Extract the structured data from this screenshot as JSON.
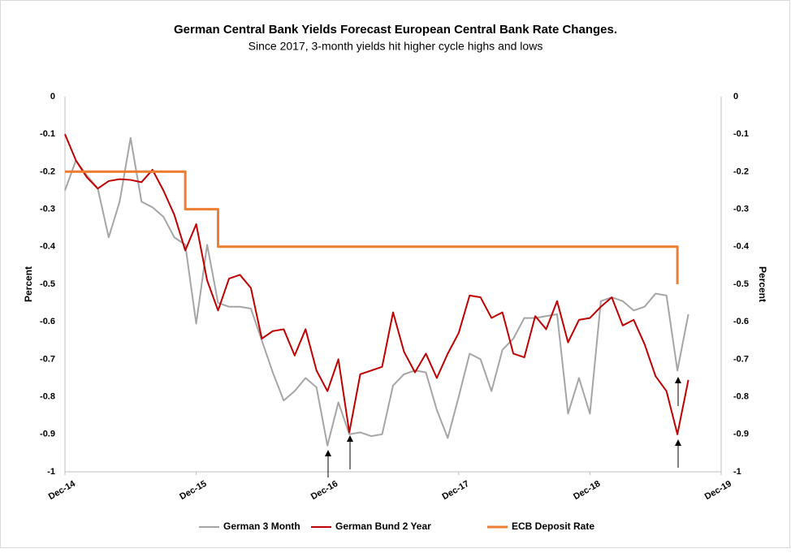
{
  "chart_data": {
    "type": "line",
    "title": "German Central Bank Yields Forecast European Central Bank Rate Changes.",
    "subtitle": "Since 2017, 3-month yields hit higher cycle highs and lows",
    "ylabel": "Percent",
    "y2label": "Percent",
    "categories": [
      "Dec-14",
      null,
      null,
      null,
      null,
      null,
      null,
      null,
      null,
      null,
      null,
      null,
      "Dec-15",
      null,
      null,
      null,
      null,
      null,
      null,
      null,
      null,
      null,
      null,
      null,
      "Dec-16",
      null,
      null,
      null,
      null,
      null,
      null,
      null,
      null,
      null,
      null,
      null,
      "Dec-17",
      null,
      null,
      null,
      null,
      null,
      null,
      null,
      null,
      null,
      null,
      null,
      "Dec-18",
      null,
      null,
      null,
      null,
      null,
      null,
      null,
      null,
      null,
      null,
      null,
      "Dec-19"
    ],
    "ylim": [
      -1,
      0
    ],
    "yticks": [
      0,
      -0.1,
      -0.2,
      -0.3,
      -0.4,
      -0.5,
      -0.6,
      -0.7,
      -0.8,
      -0.9,
      -1
    ],
    "y2lim": [
      -1,
      0
    ],
    "y2ticks": [
      0,
      -0.1,
      -0.2,
      -0.3,
      -0.4,
      -0.5,
      -0.6,
      -0.7,
      -0.8,
      -0.9,
      -1
    ],
    "grid": false,
    "legend": "bottom",
    "series": [
      {
        "name": "German 3 Month",
        "color": "#a5a5a5",
        "values": [
          -0.25,
          -0.17,
          -0.21,
          -0.245,
          -0.375,
          -0.28,
          -0.11,
          -0.28,
          -0.295,
          -0.32,
          -0.375,
          -0.395,
          -0.605,
          -0.395,
          -0.55,
          -0.56,
          -0.56,
          -0.565,
          -0.65,
          -0.735,
          -0.81,
          -0.785,
          -0.75,
          -0.775,
          -0.93,
          -0.815,
          -0.9,
          -0.895,
          -0.905,
          -0.9,
          -0.77,
          -0.74,
          -0.73,
          -0.735,
          -0.835,
          -0.91,
          -0.8,
          -0.685,
          -0.7,
          -0.785,
          -0.675,
          -0.645,
          -0.59,
          -0.59,
          -0.585,
          -0.58,
          -0.845,
          -0.75,
          -0.845,
          -0.545,
          -0.535,
          -0.545,
          -0.57,
          -0.56,
          -0.525,
          -0.53,
          -0.73,
          -0.58,
          null,
          null,
          null
        ]
      },
      {
        "name": "German Bund 2 Year",
        "color": "#c00000",
        "values": [
          -0.1,
          -0.17,
          -0.215,
          -0.245,
          -0.225,
          -0.22,
          -0.222,
          -0.228,
          -0.195,
          -0.25,
          -0.315,
          -0.41,
          -0.34,
          -0.49,
          -0.57,
          -0.485,
          -0.475,
          -0.51,
          -0.645,
          -0.625,
          -0.62,
          -0.69,
          -0.62,
          -0.73,
          -0.785,
          -0.7,
          -0.895,
          -0.74,
          -0.73,
          -0.72,
          -0.575,
          -0.68,
          -0.735,
          -0.685,
          -0.75,
          -0.685,
          -0.63,
          -0.53,
          -0.535,
          -0.59,
          -0.575,
          -0.685,
          -0.695,
          -0.585,
          -0.62,
          -0.545,
          -0.655,
          -0.595,
          -0.59,
          -0.56,
          -0.535,
          -0.61,
          -0.595,
          -0.66,
          -0.745,
          -0.785,
          -0.9,
          -0.755,
          null,
          null,
          null
        ]
      },
      {
        "name": "ECB Deposit Rate",
        "color": "#ed7d31",
        "step": "after",
        "values": [
          -0.2,
          -0.2,
          -0.2,
          -0.2,
          -0.2,
          -0.2,
          -0.2,
          -0.2,
          -0.2,
          -0.2,
          -0.2,
          -0.3,
          -0.3,
          -0.3,
          -0.4,
          -0.4,
          -0.4,
          -0.4,
          -0.4,
          -0.4,
          -0.4,
          -0.4,
          -0.4,
          -0.4,
          -0.4,
          -0.4,
          -0.4,
          -0.4,
          -0.4,
          -0.4,
          -0.4,
          -0.4,
          -0.4,
          -0.4,
          -0.4,
          -0.4,
          -0.4,
          -0.4,
          -0.4,
          -0.4,
          -0.4,
          -0.4,
          -0.4,
          -0.4,
          -0.4,
          -0.4,
          -0.4,
          -0.4,
          -0.4,
          -0.4,
          -0.4,
          -0.4,
          -0.4,
          -0.4,
          -0.4,
          -0.4,
          -0.5,
          null,
          null,
          null,
          null
        ]
      }
    ]
  }
}
